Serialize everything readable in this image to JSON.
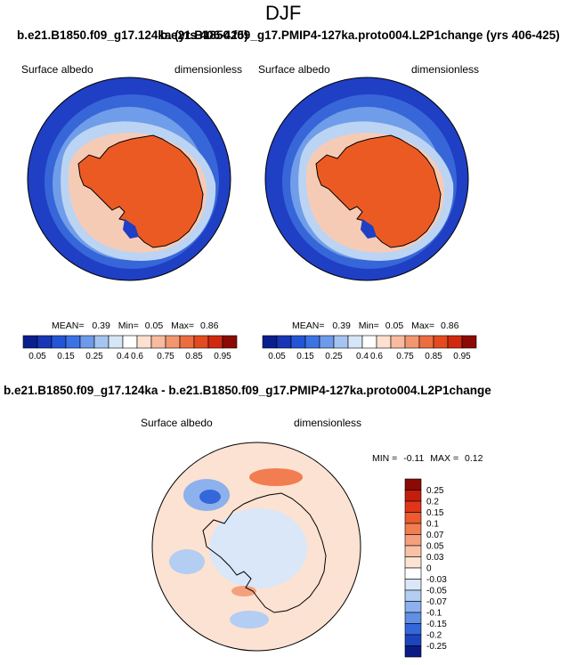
{
  "page": {
    "season_title": "DJF",
    "top_left_case": "b.e21.B1850.f09_g17.124ka (yrs 406-425)",
    "top_right_case": "b.e21.B1850.f09_g17.PMIP4-127ka.proto004.L2P1change (yrs 406-425)",
    "diff_title": "b.e21.B1850.f09_g17.124ka - b.e21.B1850.f09_g17.PMIP4-127ka.proto004.L2P1change"
  },
  "panels": {
    "left": {
      "variable": "Surface albedo",
      "units": "dimensionless",
      "mean_label": "MEAN=",
      "mean": "0.39",
      "min_label": "Min=",
      "min": "0.05",
      "max_label": "Max=",
      "max": "0.86"
    },
    "right": {
      "variable": "Surface albedo",
      "units": "dimensionless",
      "mean_label": "MEAN=",
      "mean": "0.39",
      "min_label": "Min=",
      "min": "0.05",
      "max_label": "Max=",
      "max": "0.86"
    },
    "diff": {
      "variable": "Surface albedo",
      "units": "dimensionless",
      "min_label": "MIN =",
      "min": "-0.11",
      "max_label": "MAX =",
      "max": "0.12"
    }
  },
  "abs_colorbar": {
    "tick_labels": [
      "0.05",
      "0.15",
      "0.25",
      "0.4",
      "0.6",
      "0.75",
      "0.85",
      "0.95"
    ],
    "colors": [
      "#0a1f8f",
      "#1736b5",
      "#2355d6",
      "#3b73e4",
      "#6d9ae9",
      "#a6c4f0",
      "#d6e6f8",
      "#ffffff",
      "#fde0cf",
      "#f8bb9f",
      "#f29670",
      "#ec6d40",
      "#e44a1f",
      "#cf2a10",
      "#8c0a05"
    ]
  },
  "diff_colorbar": {
    "tick_labels": [
      "0.25",
      "0.2",
      "0.15",
      "0.1",
      "0.07",
      "0.05",
      "0.03",
      "0",
      "-0.03",
      "-0.05",
      "-0.07",
      "-0.1",
      "-0.15",
      "-0.2",
      "-0.25"
    ],
    "colors": [
      "#8c0a05",
      "#c31e0d",
      "#e13518",
      "#ec5a2d",
      "#f27d50",
      "#f5a07c",
      "#f9c2a7",
      "#fde3d3",
      "#ffffff",
      "#d9e7f9",
      "#b3cdf3",
      "#8cb1ec",
      "#5f90e5",
      "#3467da",
      "#1d44bf",
      "#0b1b86"
    ]
  },
  "colors": {
    "ocean_deep": "#1f3fc4",
    "ocean_mid": "#4f86e6",
    "sea_ice": "#bcd4f3",
    "ice_edge": "#f6cbb6",
    "continent": "#ec5a24",
    "diff_background": "#fce2d2"
  }
}
